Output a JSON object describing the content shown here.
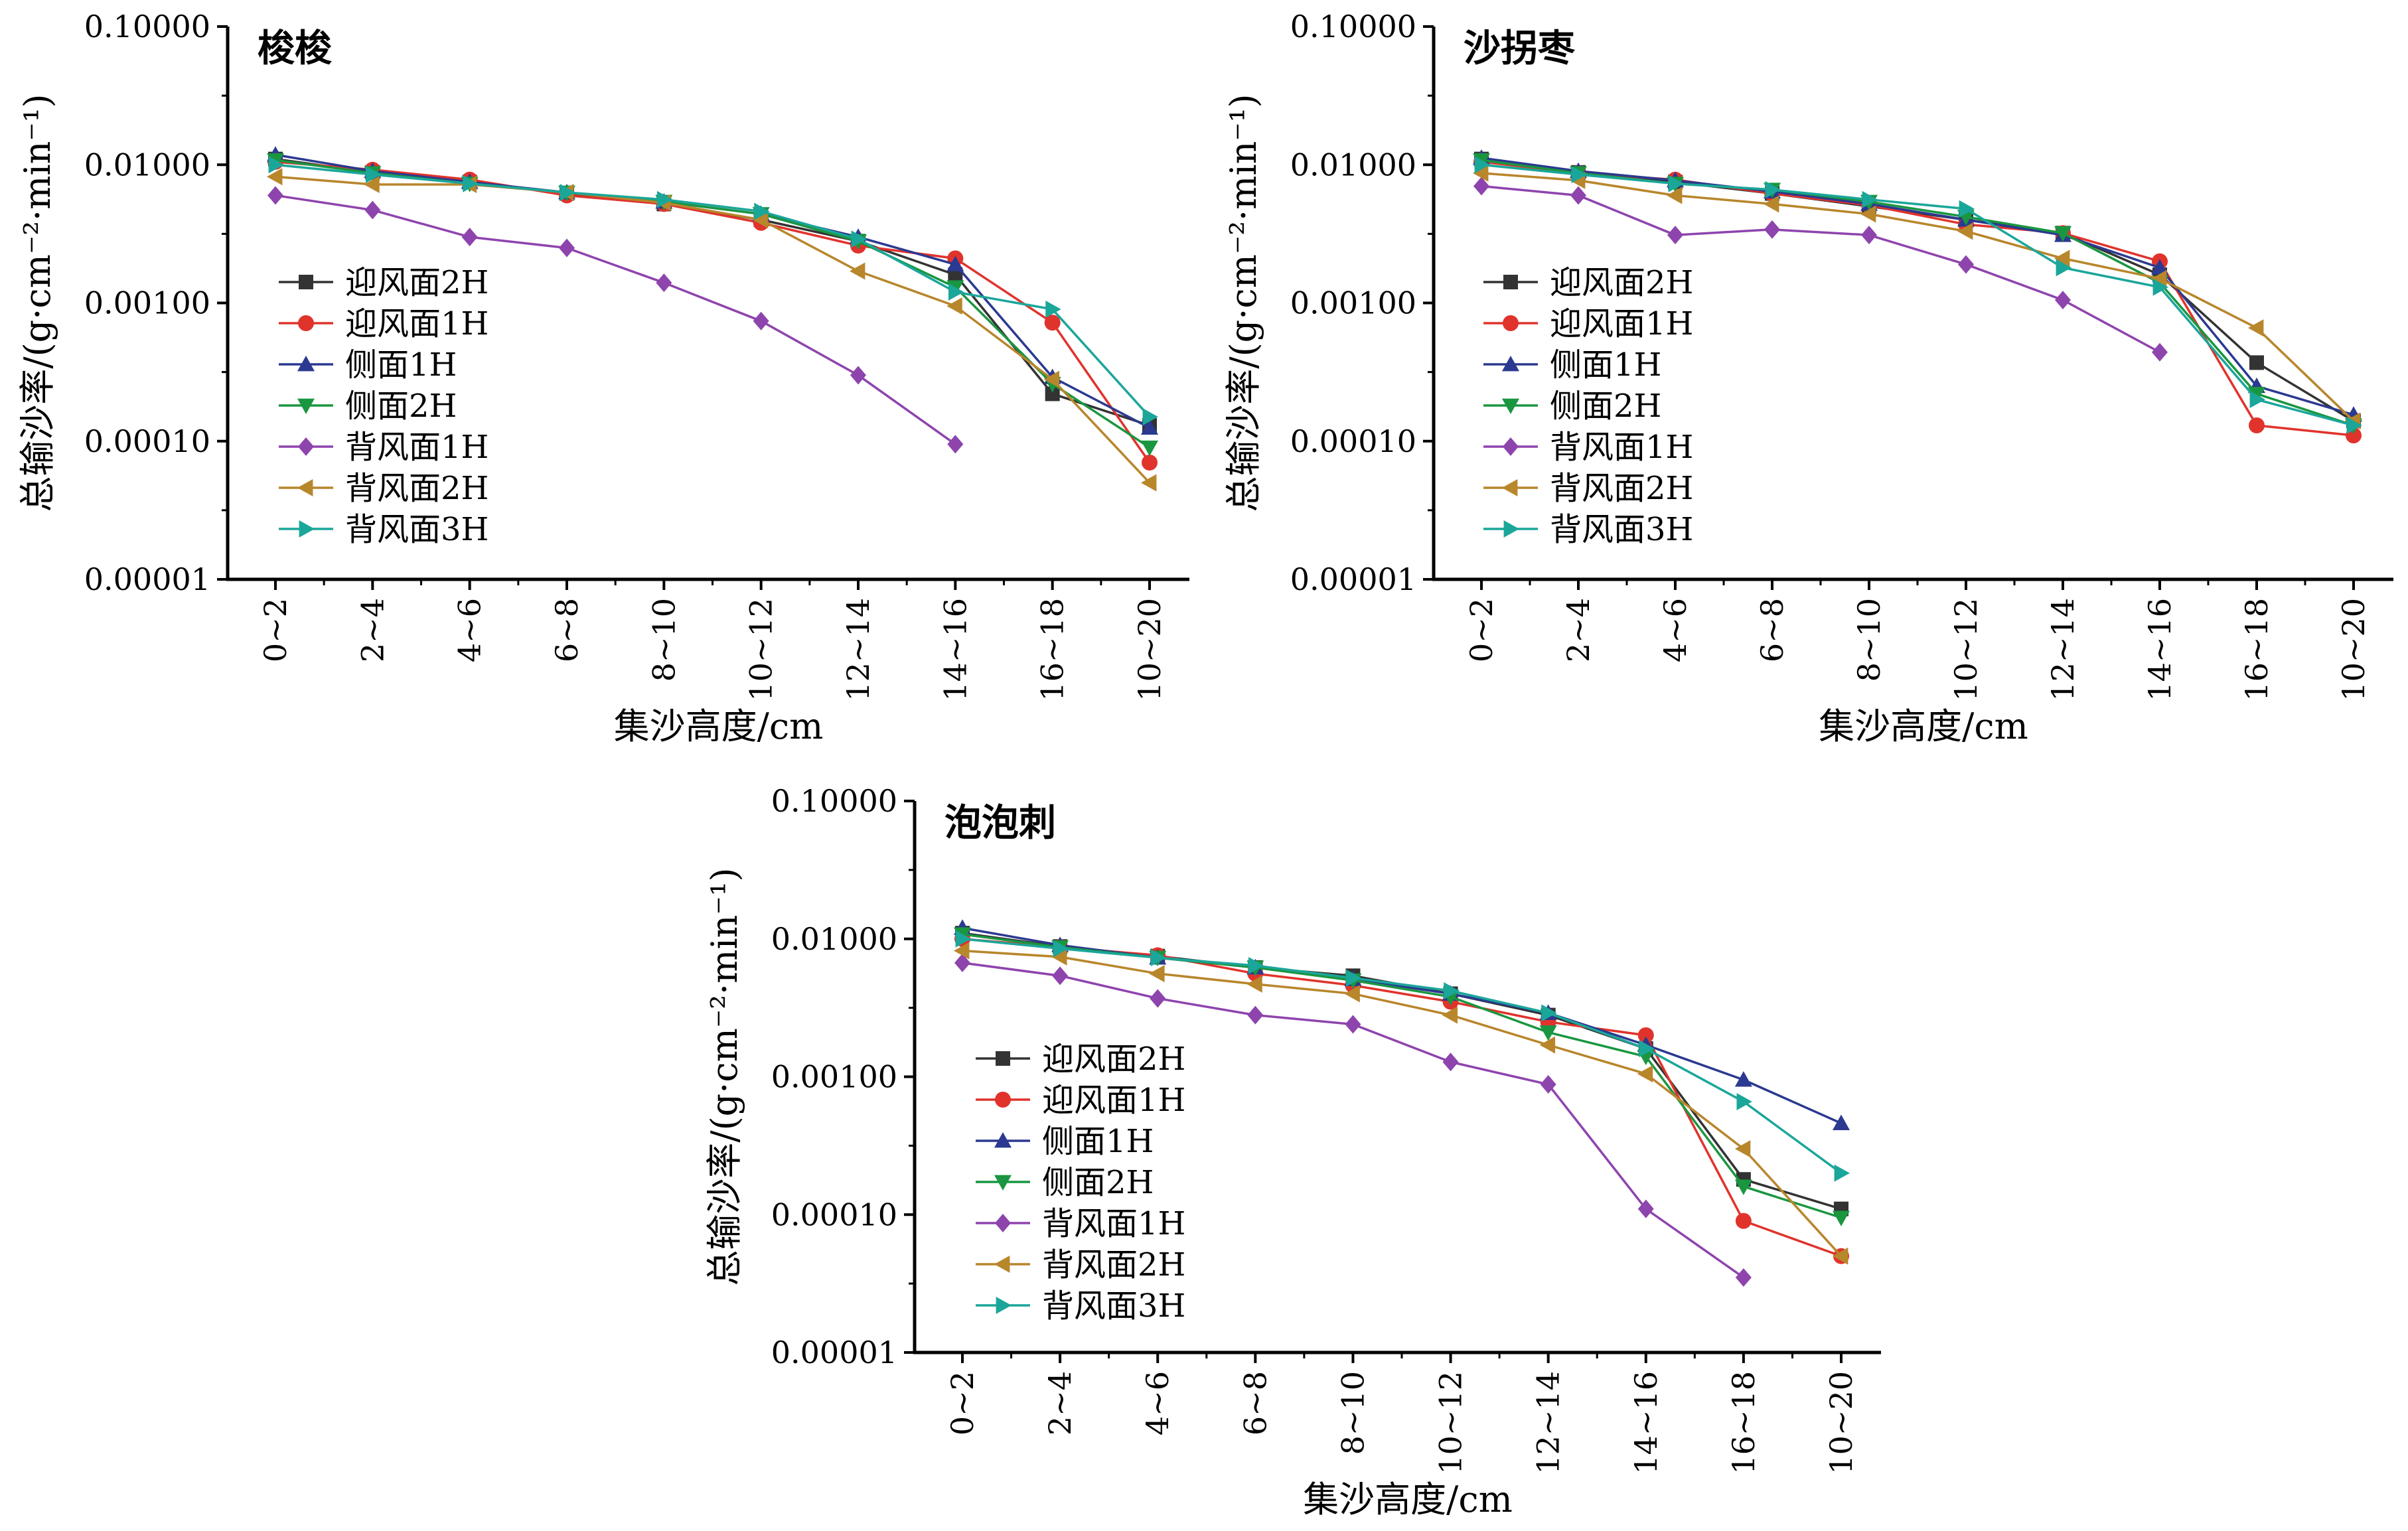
{
  "chart_data": [
    {
      "type": "line",
      "title": "梭梭",
      "xlabel": "集沙高度/cm",
      "ylabel": "总输沙率/(g·cm⁻²·min⁻¹)",
      "y_scale": "log",
      "ylim": [
        1e-05,
        0.1
      ],
      "y_ticks": [
        "0.00001",
        "0.00010",
        "0.00100",
        "0.01000",
        "0.10000"
      ],
      "categories": [
        "0~2",
        "2~4",
        "4~6",
        "6~8",
        "8~10",
        "10~12",
        "12~14",
        "14~16",
        "16~18",
        "10~20"
      ],
      "legend_position": "middle-left",
      "series": [
        {
          "name": "迎风面2H",
          "color": "#333333",
          "marker": "square",
          "values": [
            0.011,
            0.0088,
            0.0075,
            0.0062,
            0.0052,
            0.004,
            0.0028,
            0.0016,
            0.00022,
            0.00013
          ]
        },
        {
          "name": "迎风面1H",
          "color": "#e0332c",
          "marker": "circle",
          "values": [
            0.0105,
            0.0092,
            0.0078,
            0.006,
            0.0052,
            0.0038,
            0.0026,
            0.0021,
            0.00072,
            7e-05
          ]
        },
        {
          "name": "侧面1H",
          "color": "#2b3990",
          "marker": "triangle-up",
          "values": [
            0.0118,
            0.009,
            0.0075,
            0.0063,
            0.0054,
            0.0044,
            0.003,
            0.0019,
            0.00029,
            0.000125
          ]
        },
        {
          "name": "侧面2H",
          "color": "#1a9641",
          "marker": "triangle-down",
          "values": [
            0.0108,
            0.0087,
            0.0073,
            0.0063,
            0.0054,
            0.0044,
            0.0028,
            0.0013,
            0.00026,
            9e-05
          ]
        },
        {
          "name": "背风面1H",
          "color": "#8e44ad",
          "marker": "diamond",
          "values": [
            0.006,
            0.0047,
            0.003,
            0.0025,
            0.0014,
            0.00074,
            0.0003,
            9.5e-05,
            null,
            null
          ]
        },
        {
          "name": "背风面2H",
          "color": "#b8862b",
          "marker": "triangle-left",
          "values": [
            0.0082,
            0.0072,
            0.0072,
            0.0063,
            0.0053,
            0.004,
            0.0017,
            0.00095,
            0.00028,
            5e-05
          ]
        },
        {
          "name": "背风面3H",
          "color": "#1ba69a",
          "marker": "triangle-right",
          "values": [
            0.01,
            0.0085,
            0.0073,
            0.0063,
            0.0056,
            0.0046,
            0.0029,
            0.0012,
            0.0009,
            0.00015
          ]
        }
      ]
    },
    {
      "type": "line",
      "title": "沙拐枣",
      "xlabel": "集沙高度/cm",
      "ylabel": "总输沙率/(g·cm⁻²·min⁻¹)",
      "y_scale": "log",
      "ylim": [
        1e-05,
        0.1
      ],
      "y_ticks": [
        "0.00001",
        "0.00010",
        "0.00100",
        "0.01000",
        "0.10000"
      ],
      "categories": [
        "0~2",
        "2~4",
        "4~6",
        "6~8",
        "8~10",
        "10~12",
        "12~14",
        "14~16",
        "16~18",
        "10~20"
      ],
      "legend_position": "middle-left",
      "series": [
        {
          "name": "迎风面2H",
          "color": "#333333",
          "marker": "square",
          "values": [
            0.011,
            0.0088,
            0.0075,
            0.0062,
            0.005,
            0.004,
            0.0032,
            0.0016,
            0.00037,
            0.00014
          ]
        },
        {
          "name": "迎风面1H",
          "color": "#e0332c",
          "marker": "circle",
          "values": [
            0.0105,
            0.0087,
            0.0078,
            0.0062,
            0.0051,
            0.0037,
            0.0032,
            0.002,
            0.00013,
            0.00011
          ]
        },
        {
          "name": "侧面1H",
          "color": "#2b3990",
          "marker": "triangle-up",
          "values": [
            0.0112,
            0.009,
            0.0077,
            0.0064,
            0.0052,
            0.004,
            0.0031,
            0.0018,
            0.00025,
            0.000155
          ]
        },
        {
          "name": "侧面2H",
          "color": "#1a9641",
          "marker": "triangle-down",
          "values": [
            0.0108,
            0.0087,
            0.0073,
            0.0066,
            0.0054,
            0.0042,
            0.0032,
            0.0014,
            0.00022,
            0.00013
          ]
        },
        {
          "name": "背风面1H",
          "color": "#8e44ad",
          "marker": "diamond",
          "values": [
            0.007,
            0.006,
            0.0031,
            0.0034,
            0.0031,
            0.0019,
            0.00105,
            0.00044,
            null,
            null
          ]
        },
        {
          "name": "背风面2H",
          "color": "#b8862b",
          "marker": "triangle-left",
          "values": [
            0.0087,
            0.0077,
            0.006,
            0.0052,
            0.0044,
            0.0033,
            0.0021,
            0.0015,
            0.00066,
            0.00014
          ]
        },
        {
          "name": "背风面3H",
          "color": "#1ba69a",
          "marker": "triangle-right",
          "values": [
            0.01,
            0.0085,
            0.0073,
            0.0066,
            0.0056,
            0.0048,
            0.0018,
            0.0013,
            0.0002,
            0.00013
          ]
        }
      ]
    },
    {
      "type": "line",
      "title": "泡泡刺",
      "xlabel": "集沙高度/cm",
      "ylabel": "总输沙率/(g·cm⁻²·min⁻¹)",
      "y_scale": "log",
      "ylim": [
        1e-05,
        0.1
      ],
      "y_ticks": [
        "0.00001",
        "0.00010",
        "0.00100",
        "0.01000",
        "0.10000"
      ],
      "categories": [
        "0~2",
        "2~4",
        "4~6",
        "6~8",
        "8~10",
        "10~12",
        "12~14",
        "14~16",
        "16~18",
        "10~20"
      ],
      "legend_position": "lower-left",
      "series": [
        {
          "name": "迎风面2H",
          "color": "#333333",
          "marker": "square",
          "values": [
            0.011,
            0.0088,
            0.0075,
            0.0062,
            0.0054,
            0.004,
            0.0028,
            0.0016,
            0.00018,
            0.00011
          ]
        },
        {
          "name": "迎风面1H",
          "color": "#e0332c",
          "marker": "circle",
          "values": [
            0.01,
            0.0087,
            0.0076,
            0.0056,
            0.0046,
            0.0035,
            0.0025,
            0.002,
            9e-05,
            5e-05
          ]
        },
        {
          "name": "侧面1H",
          "color": "#2b3990",
          "marker": "triangle-up",
          "values": [
            0.012,
            0.009,
            0.0073,
            0.0062,
            0.0051,
            0.004,
            0.0029,
            0.0017,
            0.00095,
            0.00046
          ]
        },
        {
          "name": "侧面2H",
          "color": "#1a9641",
          "marker": "triangle-down",
          "values": [
            0.0108,
            0.0087,
            0.0073,
            0.0062,
            0.005,
            0.0038,
            0.0021,
            0.0014,
            0.00016,
            9.5e-05
          ]
        },
        {
          "name": "背风面1H",
          "color": "#8e44ad",
          "marker": "diamond",
          "values": [
            0.0067,
            0.0054,
            0.0037,
            0.0028,
            0.0024,
            0.00128,
            0.00088,
            0.00011,
            3.5e-05,
            null
          ]
        },
        {
          "name": "背风面2H",
          "color": "#b8862b",
          "marker": "triangle-left",
          "values": [
            0.0082,
            0.0074,
            0.0056,
            0.0047,
            0.004,
            0.0028,
            0.0017,
            0.00105,
            0.0003,
            5e-05
          ]
        },
        {
          "name": "背风面3H",
          "color": "#1ba69a",
          "marker": "triangle-right",
          "values": [
            0.01,
            0.0085,
            0.0073,
            0.0064,
            0.0052,
            0.0042,
            0.0029,
            0.0016,
            0.00066,
            0.0002
          ]
        }
      ]
    }
  ]
}
